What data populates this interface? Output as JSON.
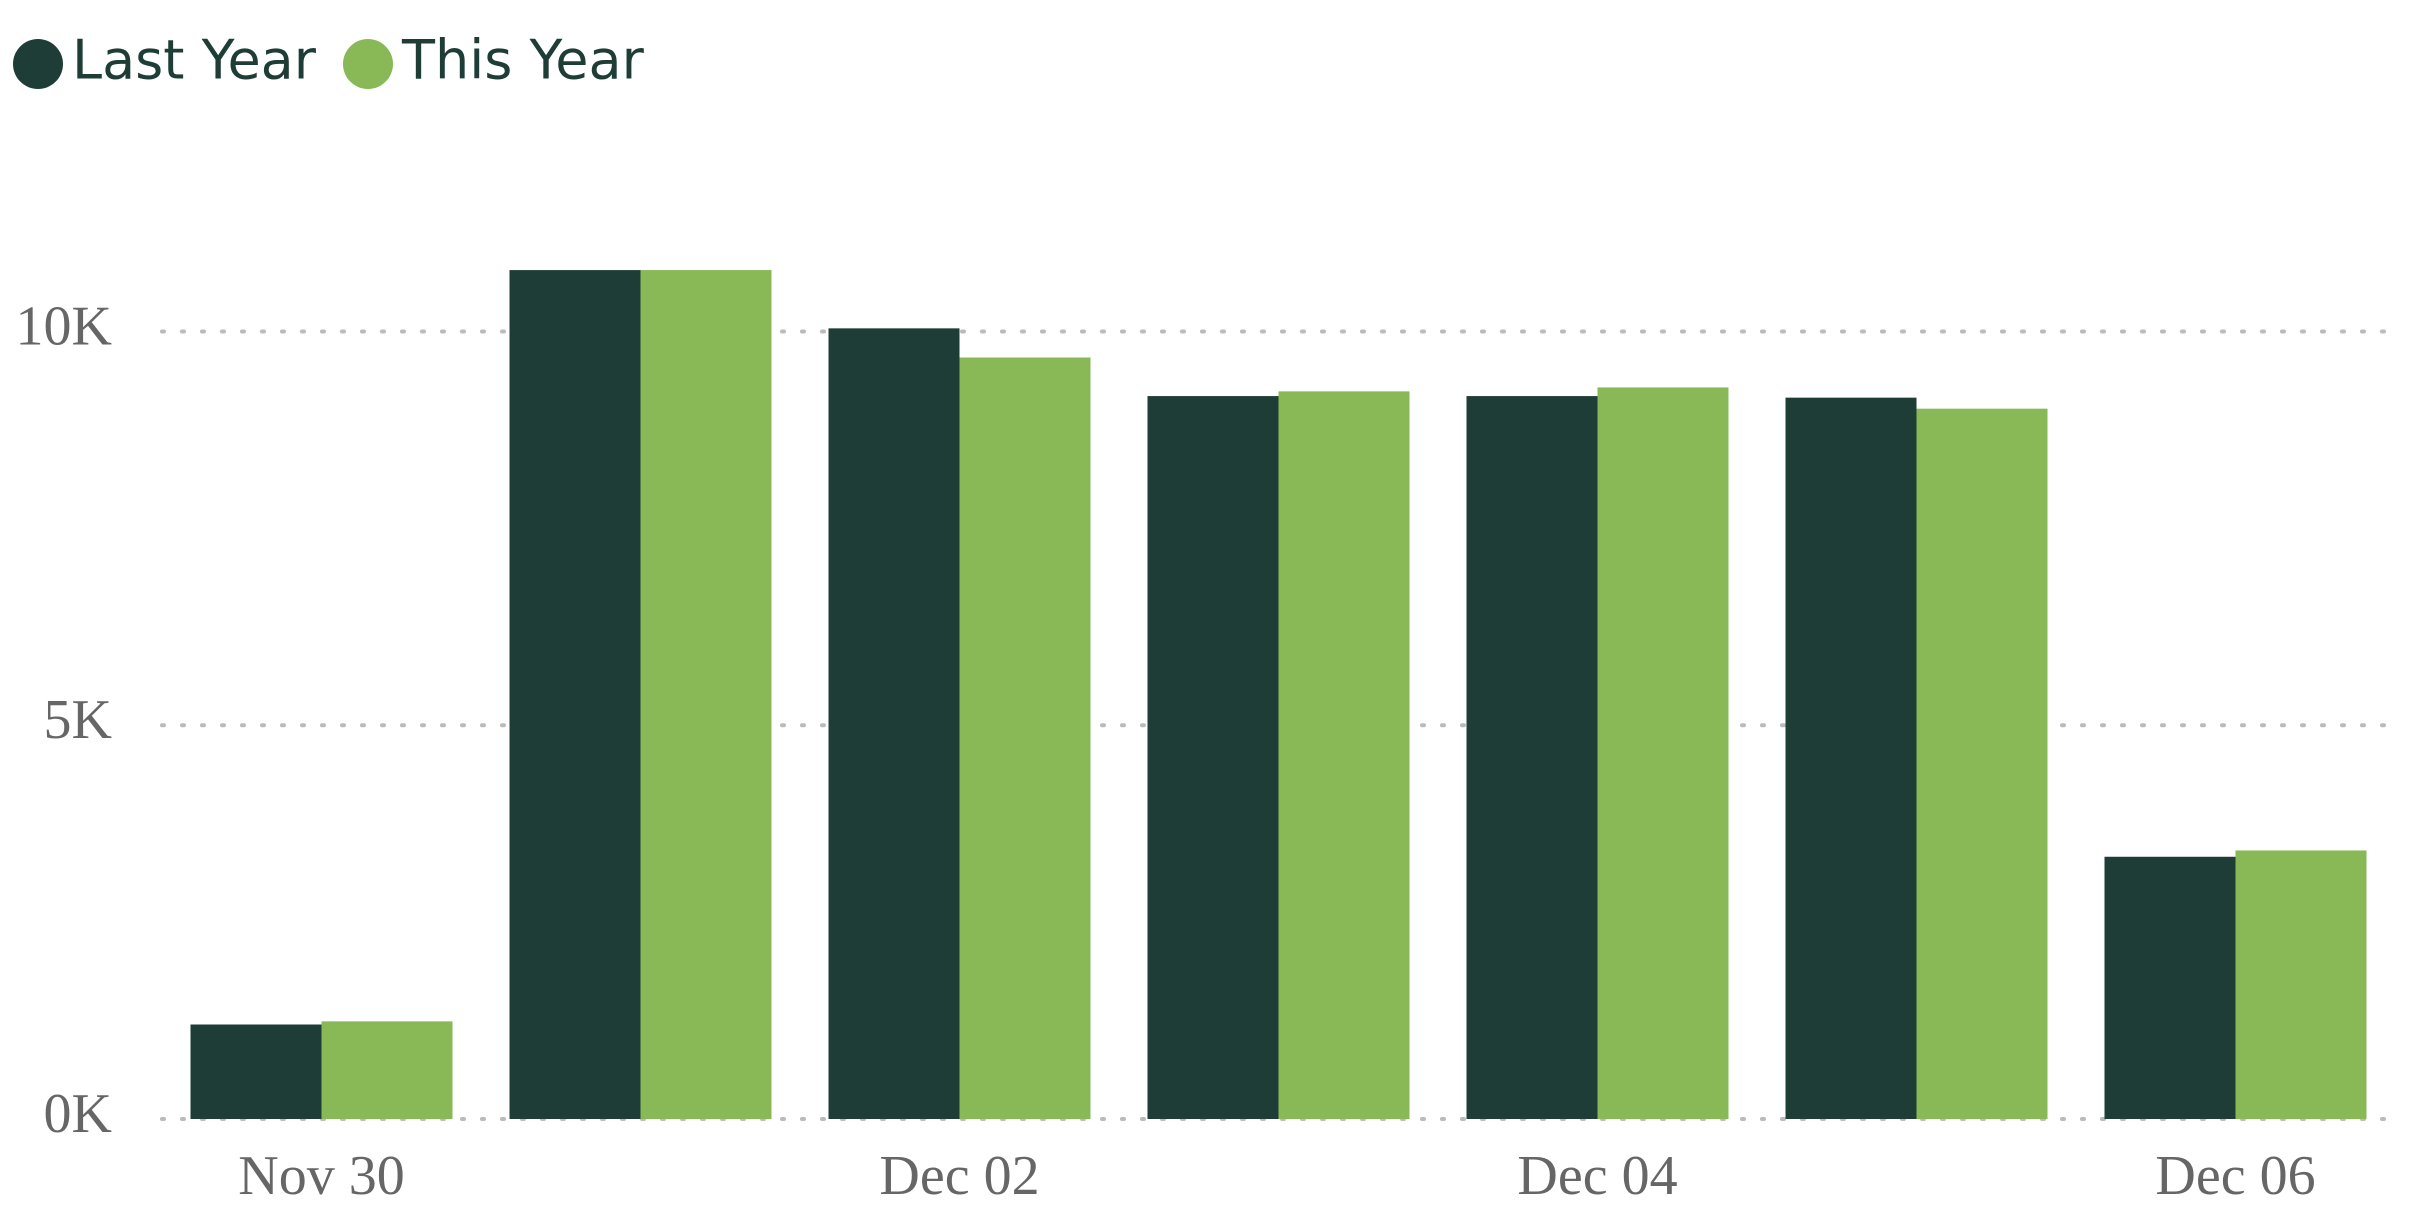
{
  "chart_data": {
    "type": "bar",
    "categories": [
      "Nov 30",
      null,
      "Dec 02",
      null,
      "Dec 04",
      null,
      "Dec 06"
    ],
    "series": [
      {
        "name": "Last Year",
        "color": "#1e3d36",
        "values": [
          1200,
          10780,
          10040,
          9180,
          9180,
          9160,
          3330
        ]
      },
      {
        "name": "This Year",
        "color": "#88b956",
        "values": [
          1240,
          10780,
          9670,
          9240,
          9290,
          9020,
          3410
        ]
      }
    ],
    "ylim": [
      0,
      12000
    ],
    "yticks": [
      {
        "value": 0,
        "label": "0K"
      },
      {
        "value": 5000,
        "label": "5K"
      },
      {
        "value": 10000,
        "label": "10K"
      }
    ],
    "grid": true,
    "legend": "top-left"
  }
}
